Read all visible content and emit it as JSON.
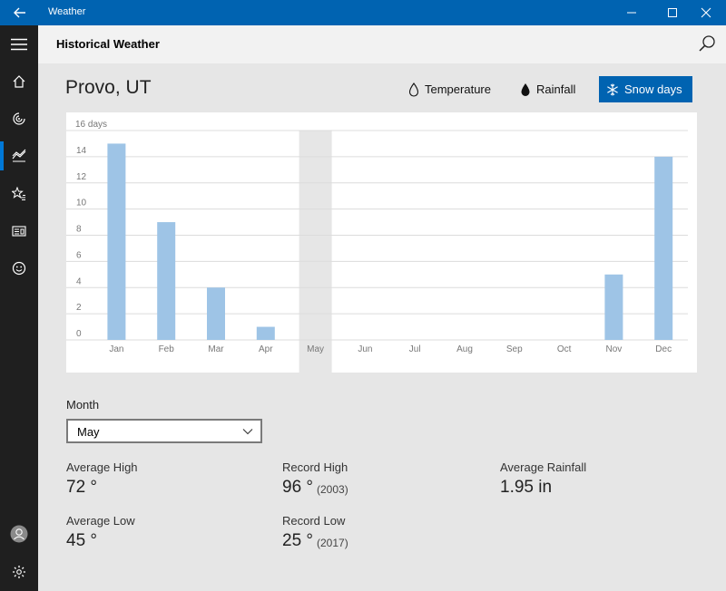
{
  "window": {
    "app_title": "Weather"
  },
  "header": {
    "title": "Historical Weather"
  },
  "location": "Provo, UT",
  "tabs": [
    {
      "label": "Temperature",
      "icon": "thermometer-drop-icon",
      "selected": false
    },
    {
      "label": "Rainfall",
      "icon": "raindrop-icon",
      "selected": false
    },
    {
      "label": "Snow days",
      "icon": "snowflake-icon",
      "selected": true
    }
  ],
  "chart_data": {
    "type": "bar",
    "ylabel": "16 days",
    "ylim": [
      0,
      16
    ],
    "yticks": [
      0,
      2,
      4,
      6,
      8,
      10,
      12,
      14
    ],
    "categories": [
      "Jan",
      "Feb",
      "Mar",
      "Apr",
      "May",
      "Jun",
      "Jul",
      "Aug",
      "Sep",
      "Oct",
      "Nov",
      "Dec"
    ],
    "values": [
      15,
      9,
      4,
      1,
      0,
      0,
      0,
      0,
      0,
      0,
      5,
      14
    ],
    "selected_category": "May",
    "bar_color": "#9ec4e6"
  },
  "month_selector": {
    "label": "Month",
    "value": "May"
  },
  "stats": {
    "avg_high": {
      "label": "Average High",
      "value": "72 °"
    },
    "avg_low": {
      "label": "Average Low",
      "value": "45 °"
    },
    "record_high": {
      "label": "Record High",
      "value": "96 °",
      "year": "(2003)"
    },
    "record_low": {
      "label": "Record Low",
      "value": "25 °",
      "year": "(2017)"
    },
    "avg_rainfall": {
      "label": "Average Rainfall",
      "value": "1.95 in"
    }
  },
  "colors": {
    "accent": "#0063b1",
    "nav_bg": "#1f1f1f",
    "active_indicator": "#0078d7"
  }
}
